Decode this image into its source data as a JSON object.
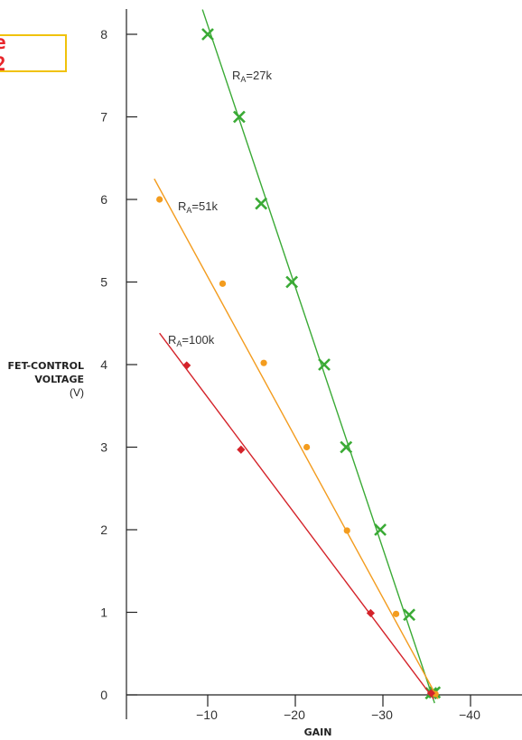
{
  "figure_label": "e 2",
  "chart_data": {
    "type": "scatter",
    "ylabel_line1": "FET-CONTROL",
    "ylabel_line2": "VOLTAGE",
    "ylabel_unit": "(V)",
    "xlabel": "GAIN",
    "xlim": [
      -1,
      -45
    ],
    "ylim": [
      0,
      8.3
    ],
    "x_ticks": [
      -10,
      -20,
      -30,
      -40
    ],
    "x_tick_labels": [
      "−10",
      "−20",
      "−30",
      "−40"
    ],
    "y_ticks": [
      0,
      1,
      2,
      3,
      4,
      5,
      6,
      7,
      8
    ],
    "y_tick_labels": [
      "0",
      "1",
      "2",
      "3",
      "4",
      "5",
      "6",
      "7",
      "8"
    ],
    "series": [
      {
        "name": "RA=27k",
        "label_main": "R",
        "label_sub": "A",
        "label_rest": "=27k",
        "color": "#3aaa35",
        "marker": "x",
        "points": [
          [
            -10,
            8
          ],
          [
            -13.6,
            7
          ],
          [
            -16.1,
            5.95
          ],
          [
            -19.6,
            5
          ],
          [
            -23.3,
            4
          ],
          [
            -25.8,
            3
          ],
          [
            -29.7,
            2
          ],
          [
            -33,
            0.97
          ],
          [
            -35.5,
            0.02
          ],
          [
            -35.9,
            0.03
          ]
        ],
        "fit": [
          [
            -9.4,
            8.3
          ],
          [
            -35.9,
            -0.1
          ]
        ]
      },
      {
        "name": "RA=51k",
        "label_main": "R",
        "label_sub": "A",
        "label_rest": "=51k",
        "color": "#f39c1e",
        "marker": "circle",
        "points": [
          [
            -4.5,
            6
          ],
          [
            -11.7,
            4.98
          ],
          [
            -16.4,
            4.02
          ],
          [
            -21.3,
            3
          ],
          [
            -25.9,
            1.99
          ],
          [
            -31.5,
            0.98
          ],
          [
            -36,
            0.01
          ]
        ],
        "fit": [
          [
            -3.9,
            6.25
          ],
          [
            -36.3,
            -0.05
          ]
        ]
      },
      {
        "name": "RA=100k",
        "label_main": "R",
        "label_sub": "A",
        "label_rest": "=100k",
        "color": "#d4232a",
        "marker": "diamond",
        "points": [
          [
            -7.6,
            3.99
          ],
          [
            -13.8,
            2.97
          ],
          [
            -28.6,
            0.99
          ],
          [
            -35.5,
            0.02
          ]
        ],
        "fit": [
          [
            -4.5,
            4.38
          ],
          [
            -35.8,
            -0.05
          ]
        ]
      }
    ]
  }
}
